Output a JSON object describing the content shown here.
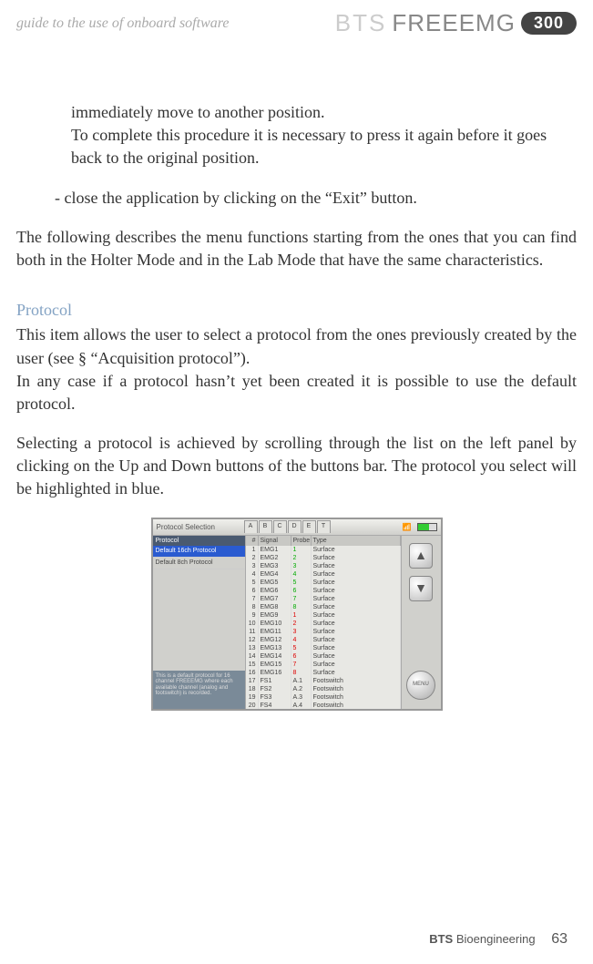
{
  "header": {
    "guide_label": "guide to the use of onboard software",
    "brand_bts": "BTS",
    "brand_name": "FREEEMG",
    "brand_badge": "300"
  },
  "content": {
    "p1": "immediately move to another position.",
    "p2": "To complete this procedure it is necessary to press it again before it goes back to the original position.",
    "p3": "- close the application by clicking on the “Exit” button.",
    "p4": "The following describes the menu functions starting from the ones that you can find both in the Holter Mode and in the Lab Mode that have the same characteristics.",
    "section": "Protocol",
    "p5": "This item allows the user to select a protocol from the ones previously created by the user  (see § “Acquisition protocol”).",
    "p6": "In any case if a protocol hasn’t yet been created it is possible to use the default protocol.",
    "p7": "Selecting a protocol is achieved by  scrolling through the list on the left panel by clicking on the Up and Down buttons of the buttons bar. The protocol you select will be highlighted in blue."
  },
  "screenshot": {
    "title": "Protocol Selection",
    "tabs": [
      "A",
      "B",
      "C",
      "D",
      "E",
      "T"
    ],
    "left_head": "Protocol",
    "proto_selected": "Default 16ch Protocol",
    "proto_other": "Default 8ch Protocol",
    "desc": "This is a default protocol for 16 channel FREEEMG where each available channel (analog and footswitch) is recorded.",
    "cols": {
      "c1": "#",
      "c2": "Signal",
      "c3": "Probe",
      "c4": "Type"
    },
    "rows": [
      {
        "n": "1",
        "sig": "EMG1",
        "pr": "1",
        "ty": "Surface",
        "cls": "probe-g"
      },
      {
        "n": "2",
        "sig": "EMG2",
        "pr": "2",
        "ty": "Surface",
        "cls": "probe-g"
      },
      {
        "n": "3",
        "sig": "EMG3",
        "pr": "3",
        "ty": "Surface",
        "cls": "probe-g"
      },
      {
        "n": "4",
        "sig": "EMG4",
        "pr": "4",
        "ty": "Surface",
        "cls": "probe-g"
      },
      {
        "n": "5",
        "sig": "EMG5",
        "pr": "5",
        "ty": "Surface",
        "cls": "probe-g"
      },
      {
        "n": "6",
        "sig": "EMG6",
        "pr": "6",
        "ty": "Surface",
        "cls": "probe-g"
      },
      {
        "n": "7",
        "sig": "EMG7",
        "pr": "7",
        "ty": "Surface",
        "cls": "probe-g"
      },
      {
        "n": "8",
        "sig": "EMG8",
        "pr": "8",
        "ty": "Surface",
        "cls": "probe-g"
      },
      {
        "n": "9",
        "sig": "EMG9",
        "pr": "1",
        "ty": "Surface",
        "cls": "probe-r"
      },
      {
        "n": "10",
        "sig": "EMG10",
        "pr": "2",
        "ty": "Surface",
        "cls": "probe-r"
      },
      {
        "n": "11",
        "sig": "EMG11",
        "pr": "3",
        "ty": "Surface",
        "cls": "probe-r"
      },
      {
        "n": "12",
        "sig": "EMG12",
        "pr": "4",
        "ty": "Surface",
        "cls": "probe-r"
      },
      {
        "n": "13",
        "sig": "EMG13",
        "pr": "5",
        "ty": "Surface",
        "cls": "probe-r"
      },
      {
        "n": "14",
        "sig": "EMG14",
        "pr": "6",
        "ty": "Surface",
        "cls": "probe-r"
      },
      {
        "n": "15",
        "sig": "EMG15",
        "pr": "7",
        "ty": "Surface",
        "cls": "probe-r"
      },
      {
        "n": "16",
        "sig": "EMG16",
        "pr": "8",
        "ty": "Surface",
        "cls": "probe-r"
      },
      {
        "n": "17",
        "sig": "FS1",
        "pr": "A.1",
        "ty": "Footswitch",
        "cls": ""
      },
      {
        "n": "18",
        "sig": "FS2",
        "pr": "A.2",
        "ty": "Footswitch",
        "cls": ""
      },
      {
        "n": "19",
        "sig": "FS3",
        "pr": "A.3",
        "ty": "Footswitch",
        "cls": ""
      },
      {
        "n": "20",
        "sig": "FS4",
        "pr": "A.4",
        "ty": "Footswitch",
        "cls": ""
      }
    ],
    "menu_label": "MENU"
  },
  "footer": {
    "brand": "BTS",
    "company": "Bioengineering",
    "page": "63"
  }
}
